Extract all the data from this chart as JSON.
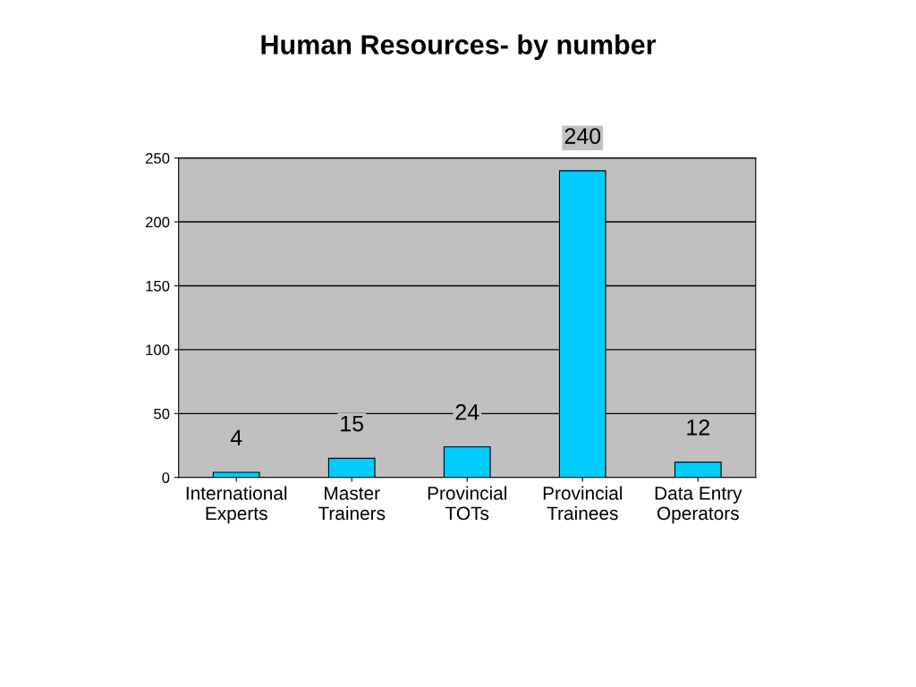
{
  "chart_data": {
    "type": "bar",
    "title": "Human Resources- by number",
    "categories": [
      "International\nExperts",
      "Master\nTrainers",
      "Provincial\nTOTs",
      "Provincial\nTrainees",
      "Data Entry\nOperators"
    ],
    "values": [
      4,
      15,
      24,
      240,
      12
    ],
    "color": "#00ccff",
    "ylim": [
      0,
      250
    ],
    "yticks": [
      0,
      50,
      100,
      150,
      200,
      250
    ],
    "grid": "y",
    "data_labels": true
  }
}
